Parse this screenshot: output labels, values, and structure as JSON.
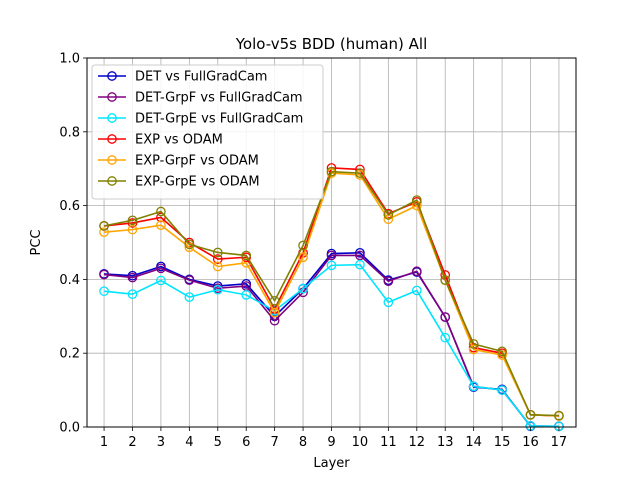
{
  "chart_data": {
    "type": "line",
    "title": "Yolo-v5s BDD (human) All",
    "xlabel": "Layer",
    "ylabel": "PCC",
    "x": [
      1,
      2,
      3,
      4,
      5,
      6,
      7,
      8,
      9,
      10,
      11,
      12,
      13,
      14,
      15,
      16,
      17
    ],
    "xlim": [
      0.4,
      17.6
    ],
    "ylim": [
      0.0,
      1.0
    ],
    "yticks": [
      0.0,
      0.2,
      0.4,
      0.6,
      0.8,
      1.0
    ],
    "ytick_labels": [
      "0.0",
      "0.2",
      "0.4",
      "0.6",
      "0.8",
      "1.0"
    ],
    "grid": true,
    "legend_position": "top-left",
    "marker": "open-circle",
    "series": [
      {
        "name": "DET vs FullGradCam",
        "color": "#0000cc",
        "values": [
          0.415,
          0.41,
          0.435,
          0.4,
          0.382,
          0.388,
          0.3,
          0.375,
          0.47,
          0.472,
          0.398,
          0.42,
          0.298,
          0.108,
          0.102,
          0.002,
          0.002
        ]
      },
      {
        "name": "DET-GrpF vs FullGradCam",
        "color": "#800080",
        "values": [
          0.413,
          0.405,
          0.43,
          0.398,
          0.376,
          0.382,
          0.288,
          0.365,
          0.465,
          0.465,
          0.395,
          0.422,
          0.298,
          0.11,
          0.1,
          0.003,
          0.002
        ]
      },
      {
        "name": "DET-GrpE vs FullGradCam",
        "color": "#00e5ff",
        "values": [
          0.368,
          0.36,
          0.397,
          0.352,
          0.372,
          0.358,
          0.315,
          0.375,
          0.438,
          0.44,
          0.338,
          0.37,
          0.242,
          0.11,
          0.1,
          0.003,
          0.002
        ]
      },
      {
        "name": "EXP vs ODAM",
        "color": "#ff0000",
        "values": [
          0.545,
          0.553,
          0.568,
          0.5,
          0.455,
          0.46,
          0.32,
          0.472,
          0.702,
          0.698,
          0.578,
          0.61,
          0.412,
          0.215,
          0.2,
          0.033,
          0.03
        ]
      },
      {
        "name": "EXP-GrpF vs ODAM",
        "color": "#ffa500",
        "values": [
          0.528,
          0.535,
          0.547,
          0.487,
          0.435,
          0.445,
          0.31,
          0.46,
          0.688,
          0.683,
          0.563,
          0.6,
          0.398,
          0.21,
          0.195,
          0.033,
          0.03
        ]
      },
      {
        "name": "EXP-GrpE vs ODAM",
        "color": "#808000",
        "values": [
          0.545,
          0.56,
          0.584,
          0.495,
          0.473,
          0.465,
          0.342,
          0.492,
          0.692,
          0.688,
          0.575,
          0.615,
          0.398,
          0.225,
          0.205,
          0.033,
          0.031
        ]
      }
    ]
  }
}
